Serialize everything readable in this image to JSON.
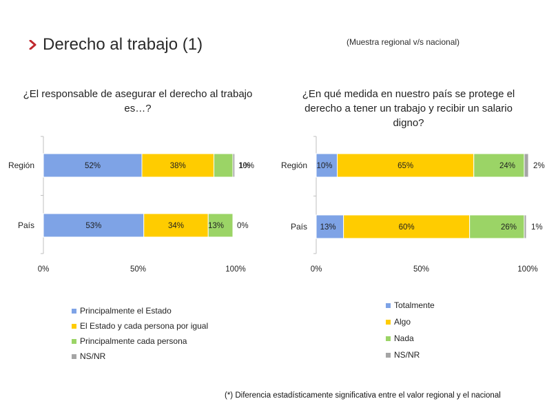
{
  "header": {
    "title": "Derecho al trabajo (1)",
    "subtitle": "(Muestra regional v/s nacional)"
  },
  "footnote": "(*) Diferencia estadísticamente significativa entre el valor regional y el nacional",
  "colors": {
    "blue": "#7ea3e6",
    "yellow": "#ffcc00",
    "green": "#9bd466",
    "gray": "#a5a5a5",
    "arrow": "#c0282d"
  },
  "chart_data": [
    {
      "type": "bar",
      "orientation": "horizontal-stacked",
      "title": "¿El responsable de asegurar el derecho al trabajo es…?",
      "categories": [
        "Región",
        "País"
      ],
      "series": [
        {
          "name": "Principalmente el Estado",
          "values": [
            52,
            53
          ],
          "labels": [
            "52%",
            "53%"
          ],
          "color": "#7ea3e6"
        },
        {
          "name": "El Estado y cada persona por igual",
          "values": [
            38,
            34
          ],
          "labels": [
            "38%",
            "34%"
          ],
          "color": "#ffcc00"
        },
        {
          "name": "Principalmente cada persona",
          "values": [
            10,
            13
          ],
          "labels": [
            "10%",
            "13%"
          ],
          "color": "#9bd466"
        },
        {
          "name": "NS/NR",
          "values": [
            1,
            0
          ],
          "labels": [
            "1%",
            "0%"
          ],
          "color": "#a5a5a5"
        }
      ],
      "xticks": [
        "0%",
        "50%",
        "100%"
      ],
      "xlim": [
        0,
        100
      ]
    },
    {
      "type": "bar",
      "orientation": "horizontal-stacked",
      "title": "¿En qué medida en nuestro país se protege el derecho a tener un trabajo y recibir un salario digno?",
      "categories": [
        "Región",
        "País"
      ],
      "series": [
        {
          "name": "Totalmente",
          "values": [
            10,
            13
          ],
          "labels": [
            "10%",
            "13%"
          ],
          "color": "#7ea3e6"
        },
        {
          "name": "Algo",
          "values": [
            65,
            60
          ],
          "labels": [
            "65%",
            "60%"
          ],
          "color": "#ffcc00"
        },
        {
          "name": "Nada",
          "values": [
            24,
            26
          ],
          "labels": [
            "24%",
            "26%"
          ],
          "color": "#9bd466"
        },
        {
          "name": "NS/NR",
          "values": [
            2,
            1
          ],
          "labels": [
            "2%",
            "1%"
          ],
          "color": "#a5a5a5"
        }
      ],
      "xticks": [
        "0%",
        "50%",
        "100%"
      ],
      "xlim": [
        0,
        100
      ]
    }
  ]
}
